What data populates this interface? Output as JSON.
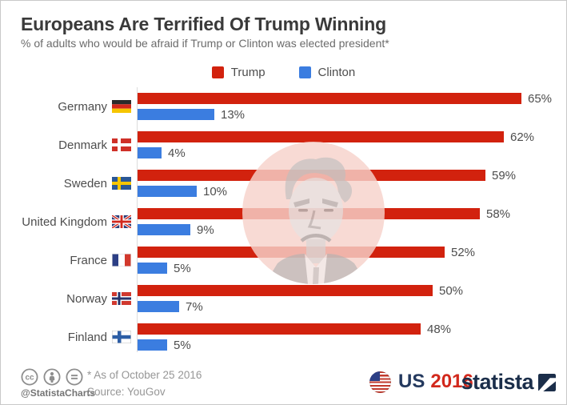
{
  "header": {
    "title": "Europeans Are Terrified Of Trump Winning",
    "subtitle": "% of adults who would be afraid if Trump or Clinton was elected president*"
  },
  "legend": [
    {
      "label": "Trump",
      "color": "#d2220e"
    },
    {
      "label": "Clinton",
      "color": "#3b7de0"
    }
  ],
  "chart_data": {
    "type": "bar",
    "orientation": "horizontal",
    "title": "Europeans Are Terrified Of Trump Winning",
    "subtitle": "% of adults who would be afraid if Trump or Clinton was elected president*",
    "categories": [
      "Germany",
      "Denmark",
      "Sweden",
      "United Kingdom",
      "France",
      "Norway",
      "Finland"
    ],
    "series": [
      {
        "name": "Trump",
        "color": "#d2220e",
        "values": [
          65,
          62,
          59,
          58,
          52,
          50,
          48
        ]
      },
      {
        "name": "Clinton",
        "color": "#3b7de0",
        "values": [
          13,
          4,
          10,
          9,
          5,
          7,
          5
        ]
      }
    ],
    "value_suffix": "%",
    "xlim": [
      0,
      68
    ],
    "grid": false,
    "legend_position": "top-center",
    "flags": [
      "flag-germany",
      "flag-denmark",
      "flag-sweden",
      "flag-united-kingdom",
      "flag-france",
      "flag-norway",
      "flag-finland"
    ]
  },
  "watermark": {
    "description": "faded Trump portrait in pink circle"
  },
  "footer": {
    "license_icons": [
      "cc-icon",
      "attribution-icon",
      "equals-icon"
    ],
    "handle": "@StatistaCharts",
    "note": "* As of October 25 2016",
    "source": "Source: YouGov",
    "badge_us": "US",
    "badge_year": "2016",
    "brand": "statista"
  },
  "colors": {
    "trump_red": "#d2220e",
    "clinton_blue": "#3b7de0",
    "navy": "#24395e",
    "badge_red": "#d2281c",
    "watermark_pink": "#f6d2cb",
    "text_dark": "#3a3a3a",
    "text_mid": "#4d4d4d",
    "text_light": "#969696"
  }
}
